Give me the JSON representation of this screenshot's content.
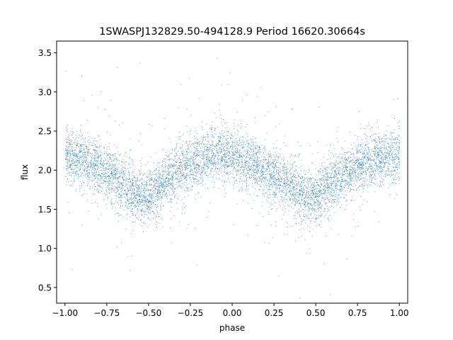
{
  "chart_data": {
    "type": "scatter",
    "title": "1SWASPJ132829.50-494128.9 Period 16620.30664s",
    "xlabel": "phase",
    "ylabel": "flux",
    "xlim": [
      -1.05,
      1.05
    ],
    "ylim": [
      0.3,
      3.65
    ],
    "xticks": [
      -1.0,
      -0.75,
      -0.5,
      -0.25,
      0.0,
      0.25,
      0.5,
      0.75,
      1.0
    ],
    "xtick_labels": [
      "−1.00",
      "−0.75",
      "−0.50",
      "−0.25",
      "0.00",
      "0.25",
      "0.50",
      "0.75",
      "1.00"
    ],
    "yticks": [
      0.5,
      1.0,
      1.5,
      2.0,
      2.5,
      3.0,
      3.5
    ],
    "ytick_labels": [
      "0.5",
      "1.0",
      "1.5",
      "2.0",
      "2.5",
      "3.0",
      "3.5"
    ],
    "grid": false,
    "marker_color": "#1f77b4",
    "light_curve": {
      "phase": [
        -1.0,
        -0.9,
        -0.8,
        -0.75,
        -0.7,
        -0.65,
        -0.6,
        -0.55,
        -0.5,
        -0.45,
        -0.4,
        -0.35,
        -0.3,
        -0.25,
        -0.2,
        -0.15,
        -0.1,
        -0.05,
        0.0,
        0.05,
        0.1,
        0.15,
        0.2,
        0.25,
        0.3,
        0.35,
        0.4,
        0.45,
        0.5,
        0.55,
        0.6,
        0.65,
        0.7,
        0.75,
        0.8,
        0.9,
        1.0
      ],
      "flux": [
        2.18,
        2.14,
        2.05,
        2.0,
        1.92,
        1.83,
        1.74,
        1.65,
        1.68,
        1.77,
        1.86,
        1.95,
        2.02,
        2.08,
        2.13,
        2.17,
        2.2,
        2.2,
        2.18,
        2.15,
        2.1,
        2.05,
        1.99,
        1.93,
        1.86,
        1.79,
        1.71,
        1.64,
        1.66,
        1.75,
        1.84,
        1.93,
        2.0,
        2.06,
        2.11,
        2.16,
        2.18
      ]
    }
  }
}
